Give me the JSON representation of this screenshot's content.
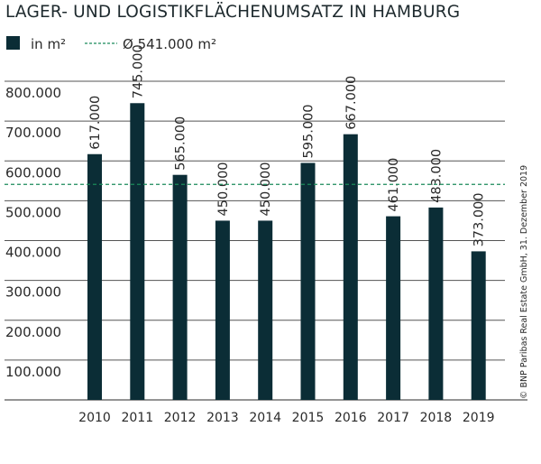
{
  "chart_data": {
    "type": "bar",
    "title": "LAGER- UND LOGISTIKFLÄCHENUMSATZ IN HAMBURG",
    "categories": [
      "2010",
      "2011",
      "2012",
      "2013",
      "2014",
      "2015",
      "2016",
      "2017",
      "2018",
      "2019"
    ],
    "series": [
      {
        "name": "in m²",
        "values": [
          617000,
          745000,
          565000,
          450000,
          450000,
          595000,
          667000,
          461000,
          483000,
          373000
        ]
      }
    ],
    "data_labels": [
      "617.000",
      "745.000",
      "565.000",
      "450.000",
      "450.000",
      "595.000",
      "667.000",
      "461.000",
      "483.000",
      "373.000"
    ],
    "reference_line": {
      "label": "Ø 541.000 m²",
      "value": 541000,
      "color": "#1a8a5a"
    },
    "ylim": [
      0,
      800000
    ],
    "yticks": [
      100000,
      200000,
      300000,
      400000,
      500000,
      600000,
      700000,
      800000
    ],
    "ytick_labels": [
      "100.000",
      "200.000",
      "300.000",
      "400.000",
      "500.000",
      "600.000",
      "700.000",
      "800.000"
    ],
    "grid": true,
    "legend": "top-left",
    "bar_color": "#0b2d36",
    "source": "© BNP Paribas Real Estate GmbH, 31. Dezember 2019"
  }
}
